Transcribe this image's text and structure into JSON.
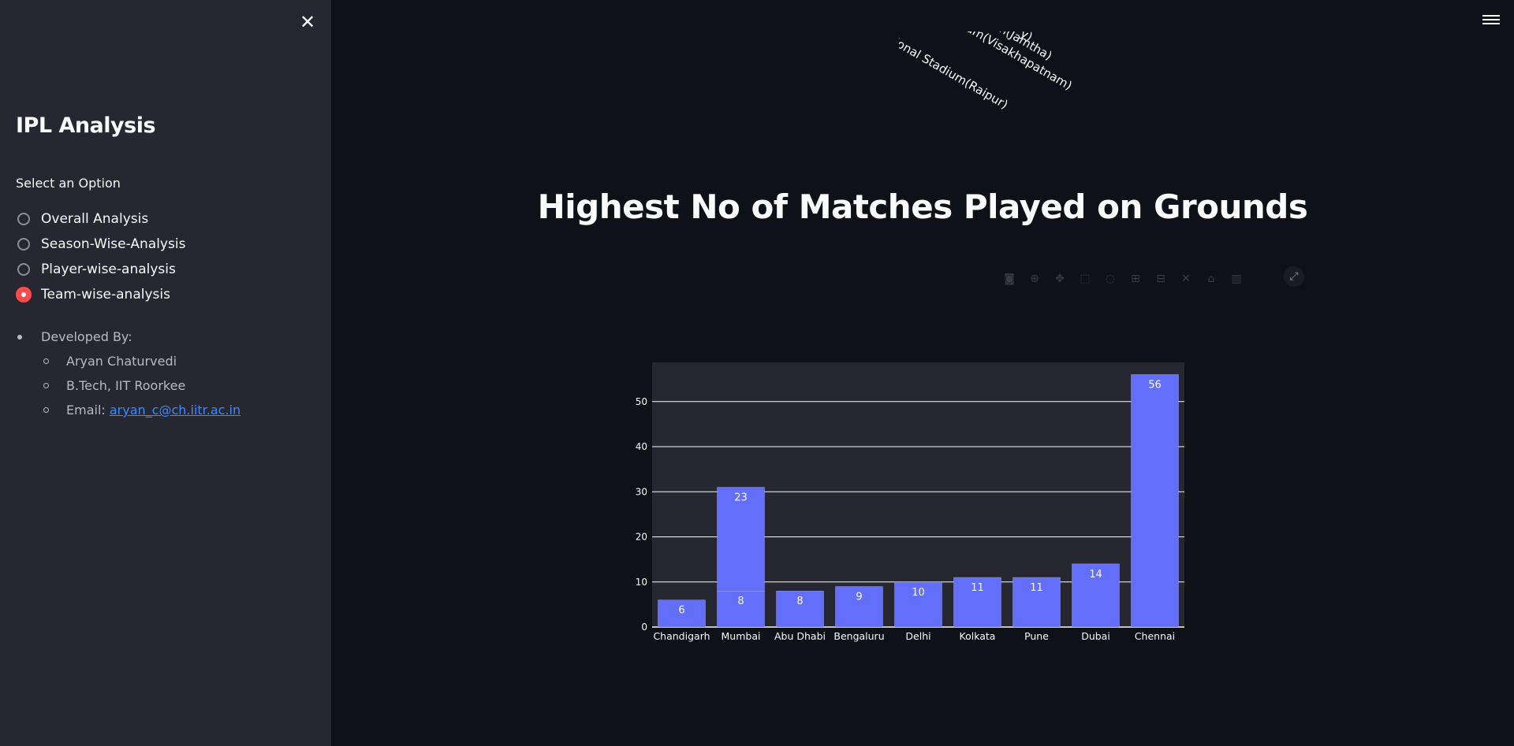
{
  "sidebar": {
    "title": "IPL Analysis",
    "select_label": "Select an Option",
    "options": [
      {
        "label": "Overall Analysis",
        "selected": false
      },
      {
        "label": "Season-Wise-Analysis",
        "selected": false
      },
      {
        "label": "Player-wise-analysis",
        "selected": false
      },
      {
        "label": "Team-wise-analysis",
        "selected": true
      }
    ],
    "developed_by_label": "Developed By:",
    "developer_name": "Aryan Chaturvedi",
    "developer_degree": "B.Tech, IIT Roorkee",
    "email_label": "Email:",
    "email": "aryan_c@ch.iitr.ac.in",
    "close_icon": "close-icon"
  },
  "header": {
    "menu_icon": "hamburger-menu-icon"
  },
  "partial_labels": [
    "ernational Stadium(Raipur)",
    "DCA Cricket Stadium(Visakhapatnam)",
    "dium(Jamtha)",
    "y)"
  ],
  "main": {
    "title": "Highest No of Matches Played on Grounds"
  },
  "colors": {
    "accent": "#ff4b4b",
    "bar": "#636efa",
    "plot_bg": "#262730",
    "page_bg": "#0e1117",
    "sidebar_bg": "#262730",
    "link": "#3d8bfd"
  },
  "chart_data": {
    "type": "bar",
    "barmode": "stack",
    "categories": [
      "Chandigarh",
      "Mumbai",
      "Abu Dhabi",
      "Bengaluru",
      "Delhi",
      "Kolkata",
      "Pune",
      "Dubai",
      "Chennai"
    ],
    "segments": [
      {
        "category": "Chandigarh",
        "value": 6
      },
      {
        "category": "Mumbai",
        "value": 8
      },
      {
        "category": "Mumbai",
        "value": 23
      },
      {
        "category": "Abu Dhabi",
        "value": 8
      },
      {
        "category": "Bengaluru",
        "value": 9
      },
      {
        "category": "Delhi",
        "value": 10
      },
      {
        "category": "Kolkata",
        "value": 11
      },
      {
        "category": "Pune",
        "value": 11
      },
      {
        "category": "Dubai",
        "value": 14
      },
      {
        "category": "Chennai",
        "value": 56
      }
    ],
    "yticks": [
      0,
      10,
      20,
      30,
      40,
      50
    ],
    "ylim": [
      0,
      58.7
    ],
    "grid": true,
    "title": "",
    "xlabel": "",
    "ylabel": ""
  }
}
